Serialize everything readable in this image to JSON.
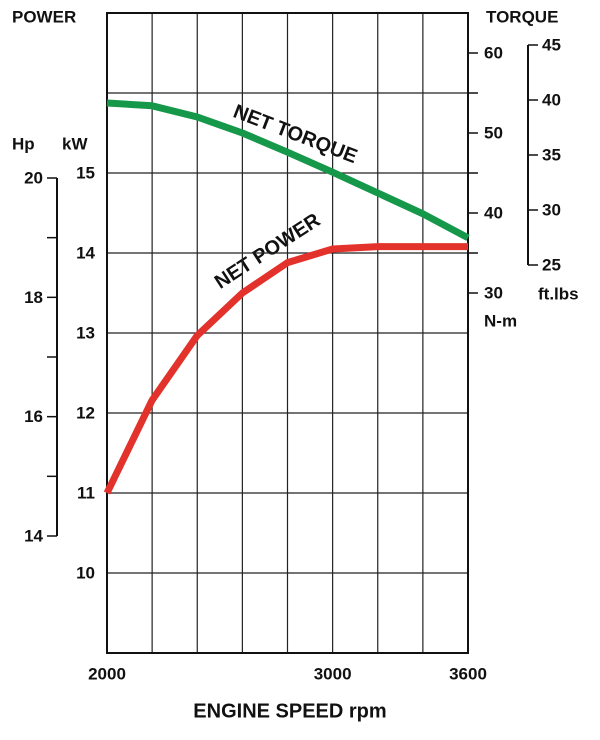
{
  "chart_data": {
    "type": "line",
    "title": "POWER",
    "y2_title": "TORQUE",
    "ylabel": "kW",
    "y2label": "N-m",
    "xlabel": "ENGINE SPEED rpm",
    "x": [
      2000,
      2200,
      2400,
      2600,
      2800,
      3000,
      3200,
      3400,
      3600
    ],
    "xlim": [
      2000,
      3600
    ],
    "xticks": [
      2000,
      {
        "value": 2200,
        "label": null
      },
      {
        "value": 2400,
        "label": null
      },
      {
        "value": 2600,
        "label": null
      },
      {
        "value": 2800,
        "label": null
      },
      3000,
      {
        "value": 3200,
        "label": null
      },
      {
        "value": 3400,
        "label": null
      },
      3600
    ],
    "ylim": [
      9,
      17
    ],
    "yticks": [
      {
        "value": 9,
        "label": null
      },
      10,
      11,
      12,
      13,
      14,
      15,
      {
        "value": 16,
        "label": null
      },
      {
        "value": 17,
        "label": null
      }
    ],
    "y2lim": [
      -15,
      65
    ],
    "y2ticks": [
      30,
      {
        "value": 35,
        "label": null
      },
      40,
      {
        "value": 45,
        "label": null
      },
      50,
      {
        "value": 55,
        "label": null
      },
      60
    ],
    "hp_axis": {
      "label": "Hp",
      "lim": [
        14,
        20
      ],
      "ticks": [
        14,
        {
          "value": 15,
          "label": null
        },
        16,
        {
          "value": 17,
          "label": null
        },
        18,
        {
          "value": 19,
          "label": null
        },
        20
      ]
    },
    "ftlbs_axis": {
      "label": "ft.lbs",
      "lim": [
        25,
        45
      ],
      "ticks": [
        25,
        30,
        35,
        40,
        45
      ]
    },
    "grid": true,
    "series": [
      {
        "name": "NET POWER",
        "color": "#e2322b",
        "values": [
          11.0,
          12.16,
          12.97,
          13.5,
          13.88,
          14.05,
          14.08,
          14.08,
          14.08
        ]
      },
      {
        "name": "NET TORQUE",
        "color": "#16984a",
        "axis": "y2",
        "values": [
          53.75,
          53.4,
          52.0,
          50.0,
          47.6,
          45.1,
          42.5,
          39.9,
          36.9
        ]
      }
    ]
  }
}
